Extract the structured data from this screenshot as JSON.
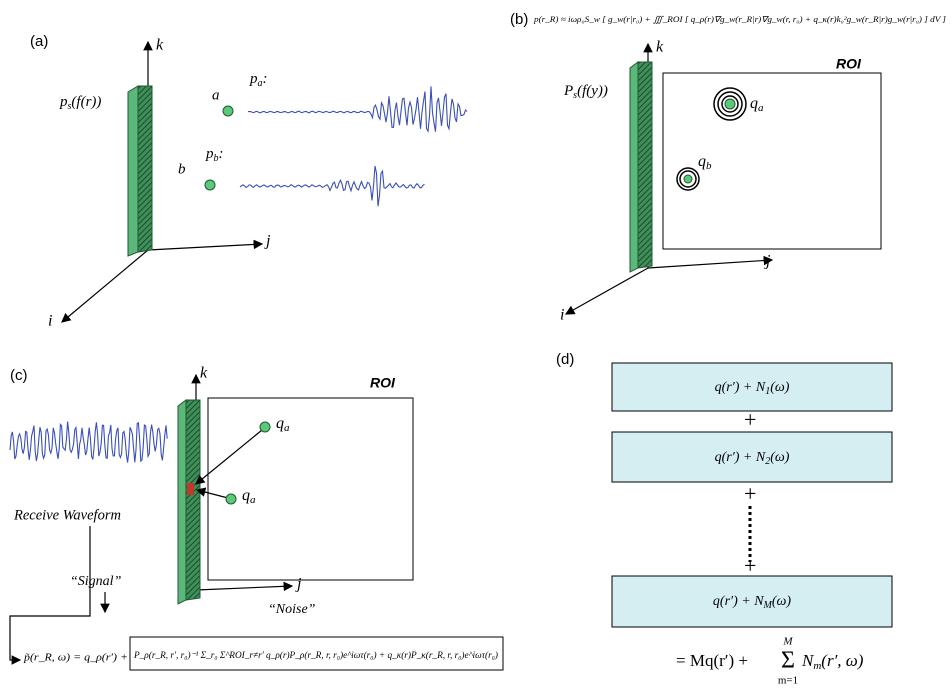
{
  "panel_a": {
    "label": "(a)",
    "axis_k": "k",
    "axis_j": "j",
    "axis_i": "i",
    "source": {
      "base": "p",
      "sub": "s",
      "tail": "(f(r))"
    },
    "point_a": "a",
    "signal_a": {
      "base": "p",
      "sub": "a",
      "tail": ":"
    },
    "point_b": "b",
    "signal_b": {
      "base": "p",
      "sub": "b",
      "tail": ":"
    }
  },
  "panel_b": {
    "label": "(b)",
    "equation": "p(r_R) ≈ iωρ₀S_w [ g_w(r|r₀) + ∭_ROI [ q_ρ(r)∇g_w(r_R|r)∇g_w(r, r₀) + q_κ(r)k₀²g_w(r_R|r)g_w(r|r₀) ] dV ]",
    "axis_k": "k",
    "axis_j": "j",
    "axis_i": "i",
    "source": {
      "base": "P",
      "sub": "s",
      "tail": "(f(y))"
    },
    "roi": "ROI",
    "scatterer_a": {
      "base": "q",
      "sub": "a"
    },
    "scatterer_b": {
      "base": "q",
      "sub": "b"
    }
  },
  "panel_c": {
    "label": "(c)",
    "axis_k": "k",
    "axis_j": "j",
    "roi": "ROI",
    "scatterer_top": {
      "base": "q",
      "sub": "a"
    },
    "scatterer_bottom": {
      "base": "q",
      "sub": "a"
    },
    "waveform_label": "Receive Waveform",
    "signal_label": "“Signal”",
    "noise_label": "“Noise”",
    "equation_signal": "p̃(r_R, ω) = q_ρ(r′) +",
    "equation_noise": "P_ρ(r_R, r′, r₀)⁻¹ Σ_r₀ Σ^ROI_r≠r′ q_ρ(r)P_ρ(r_R, r, r₀)e^iωτ(r₀) + q_κ(r)P_κ(r_R, r, r₀)e^iωτ(r₀)"
  },
  "panel_d": {
    "label": "(d)",
    "boxes": [
      {
        "main": "q(r′) + N",
        "sub": "1",
        "tail": "(ω)"
      },
      {
        "main": "q(r′) + N",
        "sub": "2",
        "tail": "(ω)"
      },
      {
        "main": "q(r′) + N",
        "sub": "M",
        "tail": "(ω)"
      }
    ],
    "plus": [
      "+",
      "+",
      "+"
    ],
    "result": {
      "lead": "= Mq(r′) + ",
      "sigma": "Σ",
      "upper": "M",
      "lower": "m=1",
      "term": "N",
      "term_sub": "m",
      "term_tail": "(r′, ω)"
    }
  }
}
